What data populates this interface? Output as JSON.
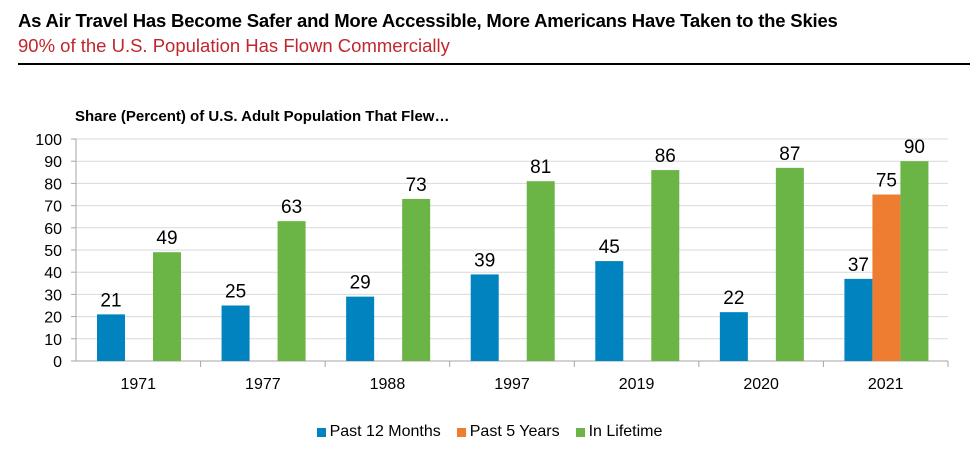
{
  "title": "As Air Travel Has Become Safer and More Accessible, More Americans Have Taken to the Skies",
  "subtitle": "90% of the U.S. Population Has Flown Commercially",
  "chart_data": {
    "type": "bar",
    "title": "Share (Percent) of U.S. Adult Population That Flew…",
    "categories": [
      "1971",
      "1977",
      "1988",
      "1997",
      "2019",
      "2020",
      "2021"
    ],
    "series": [
      {
        "name": "Past 12 Months",
        "color": "#0083be",
        "values": [
          21,
          25,
          29,
          39,
          45,
          22,
          37
        ]
      },
      {
        "name": "Past 5 Years",
        "color": "#ef7d31",
        "values": [
          null,
          null,
          null,
          null,
          null,
          null,
          75
        ]
      },
      {
        "name": "In Lifetime",
        "color": "#6ab545",
        "values": [
          49,
          63,
          73,
          81,
          86,
          87,
          90
        ]
      }
    ],
    "ylim": [
      0,
      100
    ],
    "yticks": [
      0,
      10,
      20,
      30,
      40,
      50,
      60,
      70,
      80,
      90,
      100
    ],
    "grid": true,
    "legend": "bottom"
  }
}
